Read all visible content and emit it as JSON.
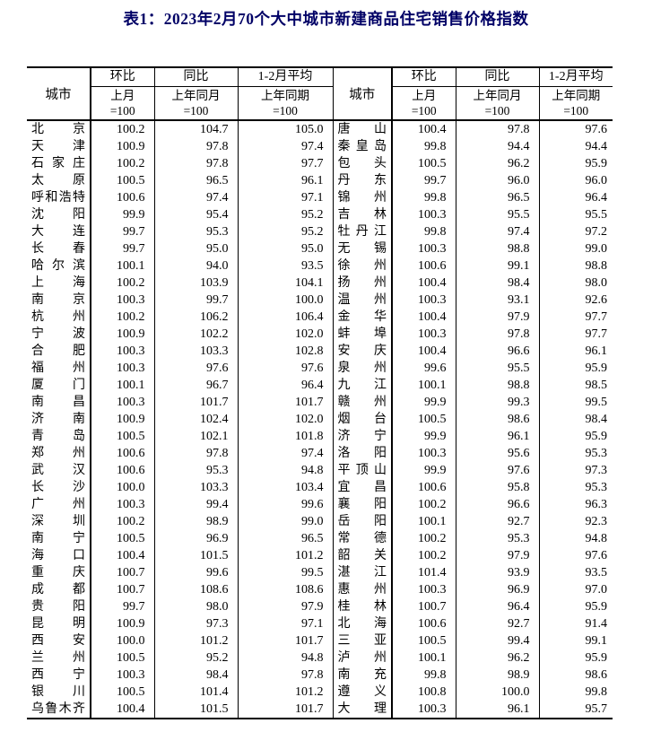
{
  "title": "表1：2023年2月70个大中城市新建商品住宅销售价格指数",
  "table": {
    "header": {
      "city_label": "城市",
      "col_groups": [
        {
          "label": "环比",
          "sub": "上月",
          "base": "=100"
        },
        {
          "label": "同比",
          "sub": "上年同月",
          "base": "=100"
        },
        {
          "label": "1-2月平均",
          "sub": "上年同期",
          "base": "=100"
        }
      ]
    },
    "rows": [
      [
        "北京",
        "100.2",
        "104.7",
        "105.0",
        "唐山",
        "100.4",
        "97.8",
        "97.6"
      ],
      [
        "天津",
        "100.9",
        "97.8",
        "97.4",
        "秦皇岛",
        "99.8",
        "94.4",
        "94.4"
      ],
      [
        "石家庄",
        "100.2",
        "97.8",
        "97.7",
        "包头",
        "100.5",
        "96.2",
        "95.9"
      ],
      [
        "太原",
        "100.5",
        "96.5",
        "96.1",
        "丹东",
        "99.7",
        "96.0",
        "96.0"
      ],
      [
        "呼和浩特",
        "100.6",
        "97.4",
        "97.1",
        "锦州",
        "99.8",
        "96.5",
        "96.4"
      ],
      [
        "沈阳",
        "99.9",
        "95.4",
        "95.2",
        "吉林",
        "100.3",
        "95.5",
        "95.5"
      ],
      [
        "大连",
        "99.7",
        "95.3",
        "95.2",
        "牡丹江",
        "99.8",
        "97.4",
        "97.2"
      ],
      [
        "长春",
        "99.7",
        "95.0",
        "95.0",
        "无锡",
        "100.3",
        "98.8",
        "99.0"
      ],
      [
        "哈尔滨",
        "100.1",
        "94.0",
        "93.5",
        "徐州",
        "100.6",
        "99.1",
        "98.8"
      ],
      [
        "上海",
        "100.2",
        "103.9",
        "104.1",
        "扬州",
        "100.4",
        "98.4",
        "98.0"
      ],
      [
        "南京",
        "100.3",
        "99.7",
        "100.0",
        "温州",
        "100.3",
        "93.1",
        "92.6"
      ],
      [
        "杭州",
        "100.2",
        "106.2",
        "106.4",
        "金华",
        "100.4",
        "97.9",
        "97.7"
      ],
      [
        "宁波",
        "100.9",
        "102.2",
        "102.0",
        "蚌埠",
        "100.3",
        "97.8",
        "97.7"
      ],
      [
        "合肥",
        "100.3",
        "103.3",
        "102.8",
        "安庆",
        "100.4",
        "96.6",
        "96.1"
      ],
      [
        "福州",
        "100.3",
        "97.6",
        "97.6",
        "泉州",
        "99.6",
        "95.5",
        "95.9"
      ],
      [
        "厦门",
        "100.1",
        "96.7",
        "96.4",
        "九江",
        "100.1",
        "98.8",
        "98.5"
      ],
      [
        "南昌",
        "100.3",
        "101.7",
        "101.7",
        "赣州",
        "99.9",
        "99.3",
        "99.5"
      ],
      [
        "济南",
        "100.9",
        "102.4",
        "102.0",
        "烟台",
        "100.5",
        "98.6",
        "98.4"
      ],
      [
        "青岛",
        "100.5",
        "102.1",
        "101.8",
        "济宁",
        "99.9",
        "96.1",
        "95.9"
      ],
      [
        "郑州",
        "100.6",
        "97.8",
        "97.4",
        "洛阳",
        "100.3",
        "95.6",
        "95.3"
      ],
      [
        "武汉",
        "100.6",
        "95.3",
        "94.8",
        "平顶山",
        "99.9",
        "97.6",
        "97.3"
      ],
      [
        "长沙",
        "100.0",
        "103.3",
        "103.4",
        "宜昌",
        "100.6",
        "95.8",
        "95.3"
      ],
      [
        "广州",
        "100.3",
        "99.4",
        "99.6",
        "襄阳",
        "100.2",
        "96.6",
        "96.3"
      ],
      [
        "深圳",
        "100.2",
        "98.9",
        "99.0",
        "岳阳",
        "100.1",
        "92.7",
        "92.3"
      ],
      [
        "南宁",
        "100.5",
        "96.9",
        "96.5",
        "常德",
        "100.2",
        "95.3",
        "94.8"
      ],
      [
        "海口",
        "100.4",
        "101.5",
        "101.2",
        "韶关",
        "100.2",
        "97.9",
        "97.6"
      ],
      [
        "重庆",
        "100.7",
        "99.6",
        "99.5",
        "湛江",
        "101.4",
        "93.9",
        "93.5"
      ],
      [
        "成都",
        "100.7",
        "108.6",
        "108.6",
        "惠州",
        "100.3",
        "96.9",
        "97.0"
      ],
      [
        "贵阳",
        "99.7",
        "98.0",
        "97.9",
        "桂林",
        "100.7",
        "96.4",
        "95.9"
      ],
      [
        "昆明",
        "100.9",
        "97.3",
        "97.1",
        "北海",
        "100.6",
        "92.7",
        "91.4"
      ],
      [
        "西安",
        "100.0",
        "101.2",
        "101.7",
        "三亚",
        "100.5",
        "99.4",
        "99.1"
      ],
      [
        "兰州",
        "100.5",
        "95.2",
        "94.8",
        "泸州",
        "100.1",
        "96.2",
        "95.9"
      ],
      [
        "西宁",
        "100.3",
        "98.4",
        "97.8",
        "南充",
        "99.8",
        "98.9",
        "98.6"
      ],
      [
        "银川",
        "100.5",
        "101.4",
        "101.2",
        "遵义",
        "100.8",
        "100.0",
        "99.8"
      ],
      [
        "乌鲁木齐",
        "100.4",
        "101.5",
        "101.7",
        "大理",
        "100.3",
        "96.1",
        "95.7"
      ]
    ]
  }
}
